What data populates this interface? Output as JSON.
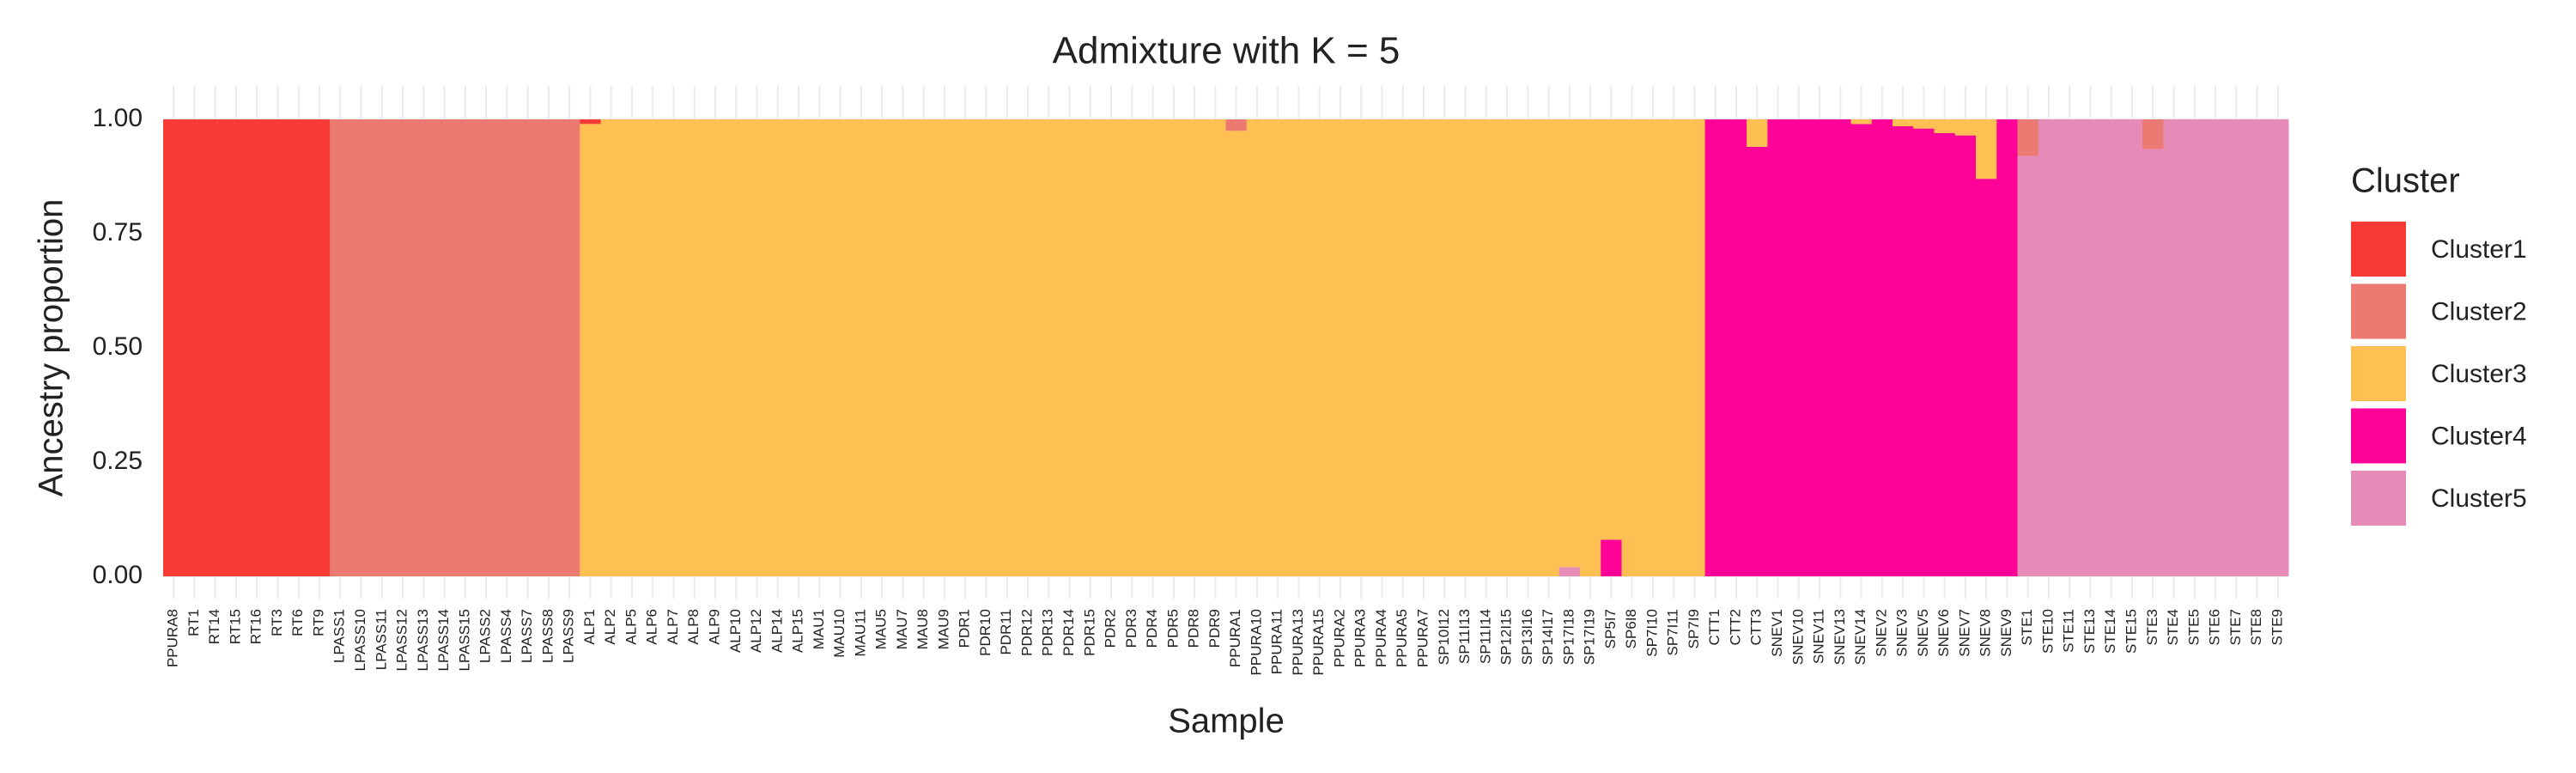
{
  "chart_data": {
    "type": "stacked_bar",
    "title": "Admixture with K = 5",
    "x_label": "Sample",
    "y_label": "Ancestry proportion",
    "legend_title": "Cluster",
    "legend": "right",
    "grid": true,
    "ylim": [
      0,
      1
    ],
    "yticks": [
      {
        "value": 0,
        "label": "0.00"
      },
      {
        "value": 0.25,
        "label": "0.25"
      },
      {
        "value": 0.5,
        "label": "0.50"
      },
      {
        "value": 0.75,
        "label": "0.75"
      },
      {
        "value": 1,
        "label": "1.00"
      }
    ],
    "categories": [
      "PPURA8",
      "RT1",
      "RT14",
      "RT15",
      "RT16",
      "RT3",
      "RT6",
      "RT9",
      "LPASS1",
      "LPASS10",
      "LPASS11",
      "LPASS12",
      "LPASS13",
      "LPASS14",
      "LPASS15",
      "LPASS2",
      "LPASS4",
      "LPASS7",
      "LPASS8",
      "LPASS9",
      "ALP1",
      "ALP2",
      "ALP5",
      "ALP6",
      "ALP7",
      "ALP8",
      "ALP9",
      "ALP10",
      "ALP12",
      "ALP14",
      "ALP15",
      "MAU1",
      "MAU10",
      "MAU11",
      "MAU5",
      "MAU7",
      "MAU8",
      "MAU9",
      "PDR1",
      "PDR10",
      "PDR11",
      "PDR12",
      "PDR13",
      "PDR14",
      "PDR15",
      "PDR2",
      "PDR3",
      "PDR4",
      "PDR5",
      "PDR8",
      "PDR9",
      "PPURA1",
      "PPURA10",
      "PPURA11",
      "PPURA13",
      "PPURA15",
      "PPURA2",
      "PPURA3",
      "PPURA4",
      "PPURA5",
      "PPURA7",
      "SP10I12",
      "SP11I13",
      "SP11I14",
      "SP12I15",
      "SP13I16",
      "SP14I17",
      "SP17I18",
      "SP17I19",
      "SP5I7",
      "SP6I8",
      "SP7I10",
      "SP7I11",
      "SP7I9",
      "CTT1",
      "CTT2",
      "CTT3",
      "SNEV1",
      "SNEV10",
      "SNEV11",
      "SNEV13",
      "SNEV14",
      "SNEV2",
      "SNEV3",
      "SNEV5",
      "SNEV6",
      "SNEV7",
      "SNEV8",
      "SNEV9",
      "STE1",
      "STE10",
      "STE11",
      "STE13",
      "STE14",
      "STE15",
      "STE3",
      "STE4",
      "STE5",
      "STE6",
      "STE7",
      "STE8",
      "STE9"
    ],
    "series": [
      {
        "name": "Cluster1",
        "color": "#F83A35",
        "values": [
          1,
          1,
          1,
          1,
          1,
          1,
          1,
          1,
          0,
          0,
          0,
          0,
          0,
          0,
          0,
          0,
          0,
          0,
          0,
          0,
          0.01,
          0,
          0,
          0,
          0,
          0,
          0,
          0,
          0,
          0,
          0,
          0,
          0,
          0,
          0,
          0,
          0,
          0,
          0,
          0,
          0,
          0,
          0,
          0,
          0,
          0,
          0,
          0,
          0,
          0,
          0,
          0,
          0,
          0,
          0,
          0,
          0,
          0,
          0,
          0,
          0,
          0,
          0,
          0,
          0,
          0,
          0,
          0,
          0,
          0,
          0,
          0,
          0,
          0,
          0,
          0,
          0,
          0,
          0,
          0,
          0,
          0,
          0,
          0,
          0,
          0,
          0,
          0,
          0,
          0,
          0,
          0,
          0,
          0,
          0,
          0,
          0,
          0,
          0,
          0,
          0,
          0
        ]
      },
      {
        "name": "Cluster2",
        "color": "#EB7A72",
        "values": [
          0,
          0,
          0,
          0,
          0,
          0,
          0,
          0,
          1,
          1,
          1,
          1,
          1,
          1,
          1,
          1,
          1,
          1,
          1,
          1,
          0,
          0,
          0,
          0,
          0,
          0,
          0,
          0,
          0,
          0,
          0,
          0,
          0,
          0,
          0,
          0,
          0,
          0,
          0,
          0,
          0,
          0,
          0,
          0,
          0,
          0,
          0,
          0,
          0,
          0,
          0,
          0.025,
          0,
          0,
          0,
          0,
          0,
          0,
          0,
          0,
          0,
          0,
          0,
          0,
          0,
          0,
          0,
          0,
          0,
          0,
          0,
          0,
          0,
          0,
          0,
          0,
          0,
          0,
          0,
          0,
          0,
          0,
          0,
          0,
          0,
          0,
          0,
          0,
          0,
          0.08,
          0,
          0,
          0,
          0,
          0,
          0.065,
          0,
          0,
          0,
          0,
          0,
          0
        ]
      },
      {
        "name": "Cluster3",
        "color": "#FFC053",
        "values": [
          0,
          0,
          0,
          0,
          0,
          0,
          0,
          0,
          0,
          0,
          0,
          0,
          0,
          0,
          0,
          0,
          0,
          0,
          0,
          0,
          0.99,
          1,
          1,
          1,
          1,
          1,
          1,
          1,
          1,
          1,
          1,
          1,
          1,
          1,
          1,
          1,
          1,
          1,
          1,
          1,
          1,
          1,
          1,
          1,
          1,
          1,
          1,
          1,
          1,
          1,
          1,
          0.975,
          1,
          1,
          1,
          1,
          1,
          1,
          1,
          1,
          1,
          1,
          1,
          1,
          1,
          1,
          1,
          0.98,
          1,
          0.92,
          1,
          1,
          1,
          1,
          0,
          0,
          0.06,
          0,
          0,
          0,
          0,
          0.01,
          0,
          0.015,
          0.02,
          0.03,
          0.035,
          0.13,
          0,
          0,
          0,
          0,
          0,
          0,
          0,
          0,
          0,
          0,
          0,
          0,
          0,
          0
        ]
      },
      {
        "name": "Cluster4",
        "color": "#FF0399",
        "values": [
          0,
          0,
          0,
          0,
          0,
          0,
          0,
          0,
          0,
          0,
          0,
          0,
          0,
          0,
          0,
          0,
          0,
          0,
          0,
          0,
          0,
          0,
          0,
          0,
          0,
          0,
          0,
          0,
          0,
          0,
          0,
          0,
          0,
          0,
          0,
          0,
          0,
          0,
          0,
          0,
          0,
          0,
          0,
          0,
          0,
          0,
          0,
          0,
          0,
          0,
          0,
          0,
          0,
          0,
          0,
          0,
          0,
          0,
          0,
          0,
          0,
          0,
          0,
          0,
          0,
          0,
          0,
          0,
          0,
          0.08,
          0,
          0,
          0,
          0,
          1,
          1,
          0.94,
          1,
          1,
          1,
          1,
          0.99,
          1,
          0.985,
          0.98,
          0.97,
          0.965,
          0.87,
          1,
          0,
          0,
          0,
          0,
          0,
          0,
          0,
          0,
          0,
          0,
          0,
          0,
          0
        ]
      },
      {
        "name": "Cluster5",
        "color": "#E68BB7",
        "values": [
          0,
          0,
          0,
          0,
          0,
          0,
          0,
          0,
          0,
          0,
          0,
          0,
          0,
          0,
          0,
          0,
          0,
          0,
          0,
          0,
          0,
          0,
          0,
          0,
          0,
          0,
          0,
          0,
          0,
          0,
          0,
          0,
          0,
          0,
          0,
          0,
          0,
          0,
          0,
          0,
          0,
          0,
          0,
          0,
          0,
          0,
          0,
          0,
          0,
          0,
          0,
          0,
          0,
          0,
          0,
          0,
          0,
          0,
          0,
          0,
          0,
          0,
          0,
          0,
          0,
          0,
          0,
          0.02,
          0,
          0,
          0,
          0,
          0,
          0,
          0,
          0,
          0,
          0,
          0,
          0,
          0,
          0,
          0,
          0,
          0,
          0,
          0,
          0,
          0,
          0.92,
          1,
          1,
          1,
          1,
          1,
          0.935,
          1,
          1,
          1,
          1,
          1,
          1
        ]
      }
    ]
  }
}
